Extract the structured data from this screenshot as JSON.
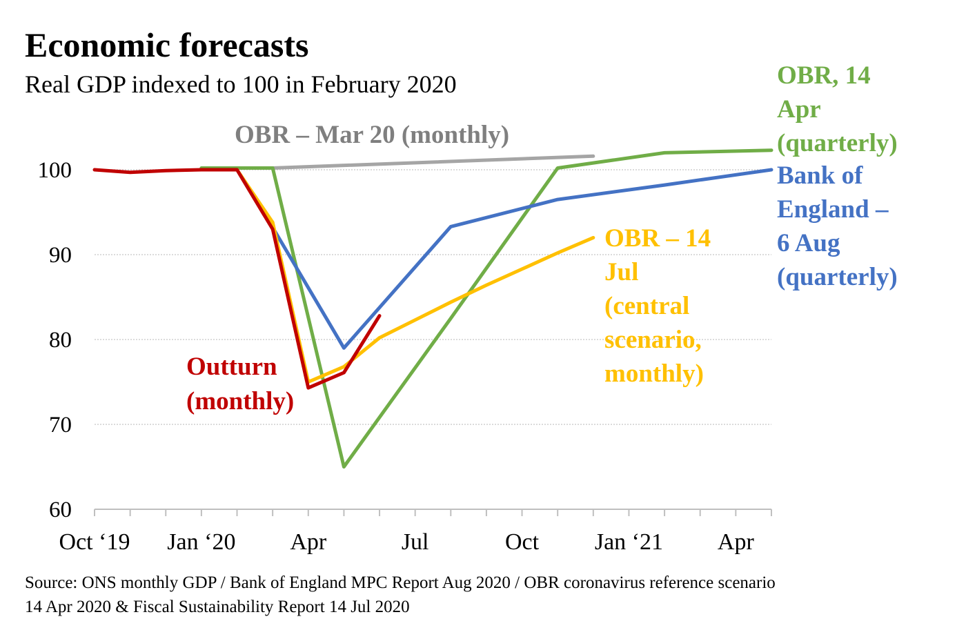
{
  "chart_data": {
    "type": "line",
    "title": "Economic forecasts",
    "subtitle": "Real GDP indexed to 100 in February 2020",
    "source": [
      "Source: ONS monthly GDP / Bank of England MPC Report Aug 2020 / OBR coronavirus reference scenario",
      "14 Apr 2020 & Fiscal Sustainability Report 14 Jul 2020"
    ],
    "x": [
      "Oct 2019",
      "Nov 2019",
      "Dec 2019",
      "Jan 2020",
      "Feb 2020",
      "Mar 2020",
      "Apr 2020",
      "May 2020",
      "Jun 2020",
      "Jul 2020",
      "Aug 2020",
      "Sep 2020",
      "Oct 2020",
      "Nov 2020",
      "Dec 2020",
      "Jan 2021",
      "Feb 2021",
      "Mar 2021",
      "Apr 2021",
      "May 2021"
    ],
    "x_tick_labels": [
      {
        "month": "Oct 2019",
        "label": "Oct ‘19"
      },
      {
        "month": "Jan 2020",
        "label": "Jan ‘20"
      },
      {
        "month": "Apr 2020",
        "label": "Apr"
      },
      {
        "month": "Jul 2020",
        "label": "Jul"
      },
      {
        "month": "Oct 2020",
        "label": "Oct"
      },
      {
        "month": "Jan 2021",
        "label": "Jan ‘21"
      },
      {
        "month": "Apr 2021",
        "label": "Apr"
      }
    ],
    "ylim": [
      60,
      100
    ],
    "yticks": [
      60,
      70,
      80,
      90,
      100
    ],
    "grid": "horizontal dotted",
    "series": [
      {
        "name": "OBR – Mar 20 (monthly)",
        "label_lines": [
          "OBR – Mar 20 (monthly)"
        ],
        "color": "#a5a5a5",
        "label_color": "#7f7f7f",
        "values": {
          "Mar 2020": 100.2,
          "Dec 2020": 101.6
        }
      },
      {
        "name": "OBR, 14 Apr (quarterly)",
        "label_lines": [
          "OBR, 14",
          "Apr",
          "(quarterly)"
        ],
        "color": "#70ad47",
        "label_color": "#70ad47",
        "values": {
          "Jan 2020": 100.2,
          "Mar 2020": 100.2,
          "May 2020": 65,
          "Aug 2020": 82.5,
          "Nov 2020": 100.2,
          "Feb 2021": 102.0,
          "May 2021": 102.3
        }
      },
      {
        "name": "Bank of England – 6 Aug (quarterly)",
        "label_lines": [
          "Bank of",
          "England –",
          "6 Aug",
          "(quarterly)"
        ],
        "color": "#4472c4",
        "label_color": "#4472c4",
        "values": {
          "Mar 2020": 93.2,
          "May 2020": 79,
          "Aug 2020": 93.3,
          "Nov 2020": 96.5,
          "Feb 2021": 98.2,
          "May 2021": 100
        }
      },
      {
        "name": "OBR – 14 Jul (central scenario, monthly)",
        "label_lines": [
          "OBR – 14",
          "Jul",
          "(central",
          "scenario,",
          "monthly)"
        ],
        "color": "#ffc000",
        "label_color": "#ffc000",
        "values": {
          "Jan 2020": 100,
          "Feb 2020": 100,
          "Mar 2020": 93.8,
          "Apr 2020": 75,
          "May 2020": 76.8,
          "Jun 2020": 80.2,
          "Jul 2020": 82.3,
          "Aug 2020": 84.4,
          "Sep 2020": 86.4,
          "Oct 2020": 88.3,
          "Nov 2020": 90.2,
          "Dec 2020": 92
        }
      },
      {
        "name": "Outturn (monthly)",
        "label_lines": [
          "Outturn",
          "(monthly)"
        ],
        "color": "#c00000",
        "label_color": "#c00000",
        "values": {
          "Oct 2019": 100,
          "Nov 2019": 99.7,
          "Dec 2019": 99.9,
          "Jan 2020": 100,
          "Feb 2020": 100,
          "Mar 2020": 93,
          "Apr 2020": 74.3,
          "May 2020": 76.1,
          "Jun 2020": 82.8
        }
      }
    ]
  }
}
